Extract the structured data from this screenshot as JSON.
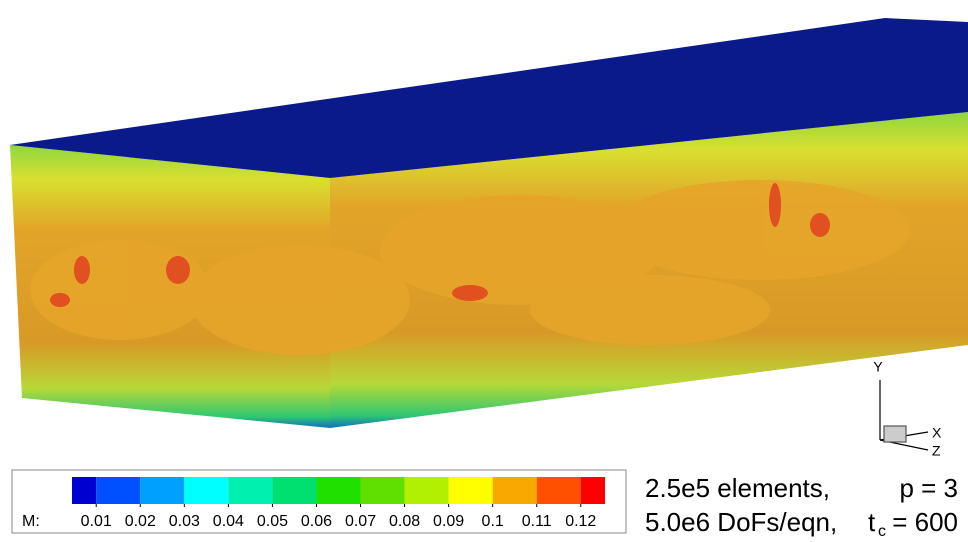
{
  "colorbar": {
    "label": "M:",
    "clim": [
      0.0045,
      0.1255
    ],
    "ticks": [
      0.01,
      0.02,
      0.03,
      0.04,
      0.05,
      0.06,
      0.07,
      0.08,
      0.09,
      0.1,
      0.11,
      0.12
    ],
    "colors": [
      "#0000d0",
      "#0050ff",
      "#00a0ff",
      "#00ffff",
      "#00f0b0",
      "#00e070",
      "#20e000",
      "#60e000",
      "#b0f000",
      "#ffff00",
      "#f8a800",
      "#ff5000",
      "#ff0000"
    ]
  },
  "annotations": {
    "elements": "2.5e5 elements,",
    "order": "p = 3",
    "dofs": "5.0e6 DoFs/eqn,",
    "time_symbol": "t",
    "time_subscript": "c",
    "time_value": "= 600"
  },
  "triad": {
    "y": "Y",
    "x": "X",
    "z": "Z"
  }
}
